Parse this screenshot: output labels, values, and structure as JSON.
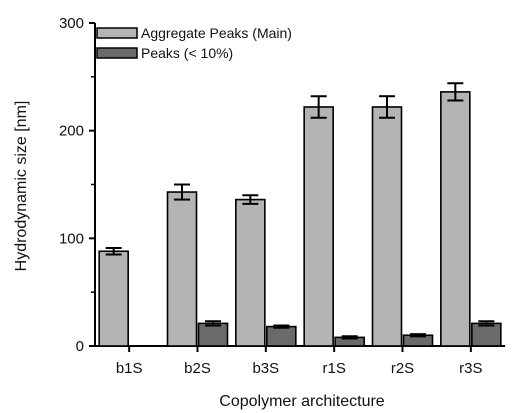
{
  "chart_data": {
    "type": "bar",
    "title": "",
    "xlabel": "Copolymer architecture",
    "ylabel": "Hydrodynamic size [nm]",
    "categories": [
      "b1S",
      "b2S",
      "b3S",
      "r1S",
      "r2S",
      "r3S"
    ],
    "ylim": [
      0,
      300
    ],
    "yticks": [
      0,
      100,
      200,
      300
    ],
    "grid": false,
    "legend_position": "top-left",
    "series": [
      {
        "name": "Aggregate Peaks (Main)",
        "color": "#b4b4b4",
        "values": [
          88,
          143,
          136,
          222,
          222,
          236
        ],
        "errors": [
          3,
          7,
          4,
          10,
          10,
          8
        ]
      },
      {
        "name": "Peaks (< 10%)",
        "color": "#6a6a6a",
        "values": [
          null,
          21,
          18,
          8,
          10,
          21
        ],
        "errors": [
          null,
          2,
          1,
          1,
          1,
          2
        ]
      }
    ]
  }
}
